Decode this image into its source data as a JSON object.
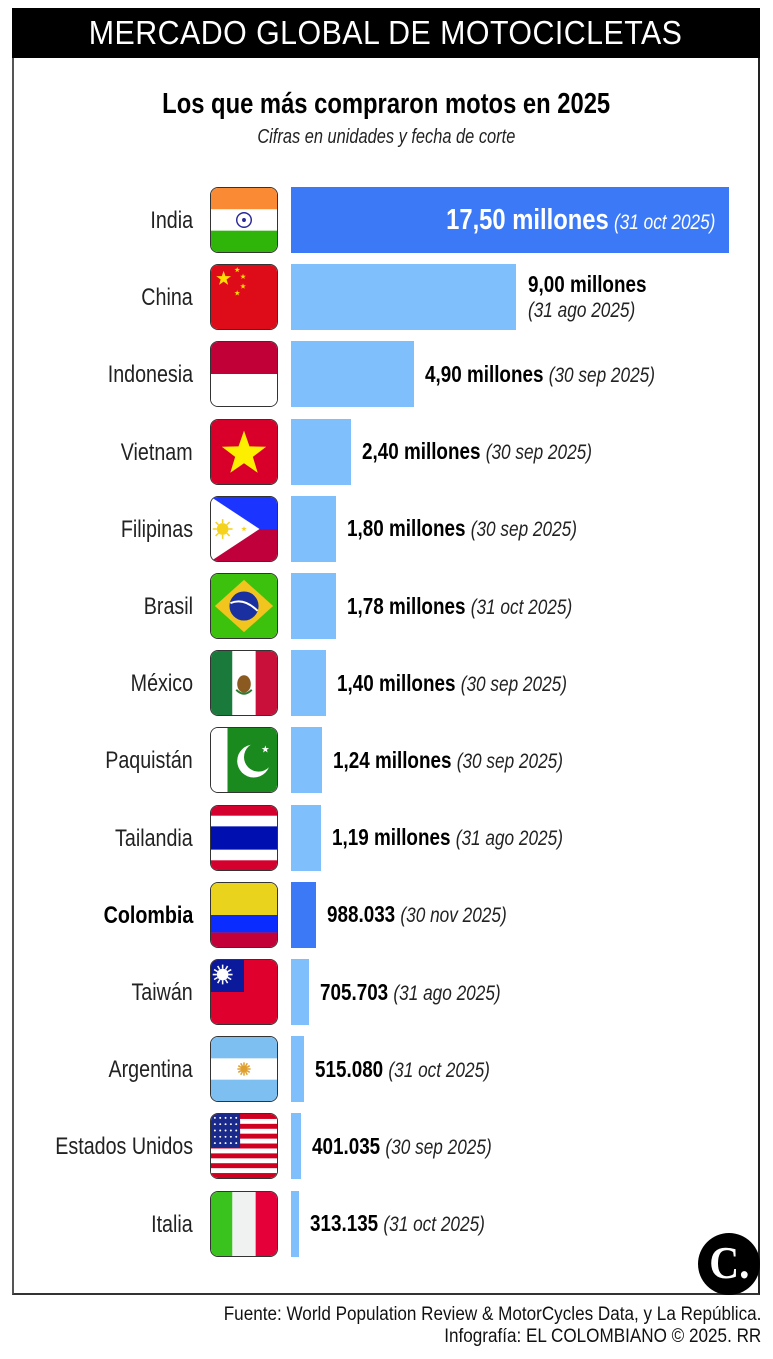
{
  "header": {
    "title": "MERCADO GLOBAL DE MOTOCICLETAS"
  },
  "chart": {
    "title": "Los que más compraron motos en 2025",
    "subtitle": "Cifras en unidades y fecha de corte"
  },
  "rows": [
    {
      "country": "India",
      "flag": "india-flag",
      "value": 17500000,
      "value_label": "17,50 millones",
      "date": "(31 oct 2025)",
      "highlight": true
    },
    {
      "country": "China",
      "flag": "china-flag",
      "value": 9000000,
      "value_label": "9,00 millones",
      "date": "(31 ago 2025)",
      "highlight": false
    },
    {
      "country": "Indonesia",
      "flag": "indonesia-flag",
      "value": 4900000,
      "value_label": "4,90 millones",
      "date": "(30 sep 2025)",
      "highlight": false
    },
    {
      "country": "Vietnam",
      "flag": "vietnam-flag",
      "value": 2400000,
      "value_label": "2,40 millones",
      "date": "(30 sep 2025)",
      "highlight": false
    },
    {
      "country": "Filipinas",
      "flag": "philippines-flag",
      "value": 1800000,
      "value_label": "1,80 millones",
      "date": "(30 sep 2025)",
      "highlight": false
    },
    {
      "country": "Brasil",
      "flag": "brazil-flag",
      "value": 1780000,
      "value_label": "1,78 millones",
      "date": "(31 oct 2025)",
      "highlight": false
    },
    {
      "country": "México",
      "flag": "mexico-flag",
      "value": 1400000,
      "value_label": "1,40 millones",
      "date": "(30 sep 2025)",
      "highlight": false
    },
    {
      "country": "Paquistán",
      "flag": "pakistan-flag",
      "value": 1240000,
      "value_label": "1,24 millones",
      "date": "(30 sep 2025)",
      "highlight": false
    },
    {
      "country": "Tailandia",
      "flag": "thailand-flag",
      "value": 1190000,
      "value_label": "1,19 millones",
      "date": "(31 ago 2025)",
      "highlight": false
    },
    {
      "country": "Colombia",
      "flag": "colombia-flag",
      "value": 988033,
      "value_label": "988.033",
      "date": "(30 nov 2025)",
      "highlight": true
    },
    {
      "country": "Taiwán",
      "flag": "taiwan-flag",
      "value": 705703,
      "value_label": "705.703",
      "date": "(31 ago 2025)",
      "highlight": false
    },
    {
      "country": "Argentina",
      "flag": "argentina-flag",
      "value": 515080,
      "value_label": "515.080",
      "date": "(31 oct 2025)",
      "highlight": false
    },
    {
      "country": "Estados Unidos",
      "flag": "usa-flag",
      "value": 401035,
      "value_label": "401.035",
      "date": "(30 sep 2025)",
      "highlight": false
    },
    {
      "country": "Italia",
      "flag": "italy-flag",
      "value": 313135,
      "value_label": "313.135",
      "date": "(31 oct 2025)",
      "highlight": false
    }
  ],
  "colors": {
    "bar": "#7fbffc",
    "bar_highlight": "#3b79f7",
    "header_bg": "#000000"
  },
  "logo": {
    "text": "C."
  },
  "footer": {
    "source": "Fuente: World Population Review & MotorCycles Data, y La República.",
    "credit": "Infografía: EL COLOMBIANO © 2025. RR"
  },
  "chart_data": {
    "type": "bar",
    "orientation": "horizontal",
    "title": "Los que más compraron motos en 2025",
    "subtitle": "Cifras en unidades y fecha de corte",
    "categories": [
      "India",
      "China",
      "Indonesia",
      "Vietnam",
      "Filipinas",
      "Brasil",
      "México",
      "Paquistán",
      "Tailandia",
      "Colombia",
      "Taiwán",
      "Argentina",
      "Estados Unidos",
      "Italia"
    ],
    "values": [
      17500000,
      9000000,
      4900000,
      2400000,
      1800000,
      1780000,
      1400000,
      1240000,
      1190000,
      988033,
      705703,
      515080,
      401035,
      313135
    ],
    "dates": [
      "31 oct 2025",
      "31 ago 2025",
      "30 sep 2025",
      "30 sep 2025",
      "30 sep 2025",
      "31 oct 2025",
      "30 sep 2025",
      "30 sep 2025",
      "31 ago 2025",
      "30 nov 2025",
      "31 ago 2025",
      "31 oct 2025",
      "30 sep 2025",
      "31 oct 2025"
    ],
    "highlighted": [
      "India",
      "Colombia"
    ],
    "xlabel": "",
    "ylabel": "",
    "grid": false,
    "legend": null
  }
}
